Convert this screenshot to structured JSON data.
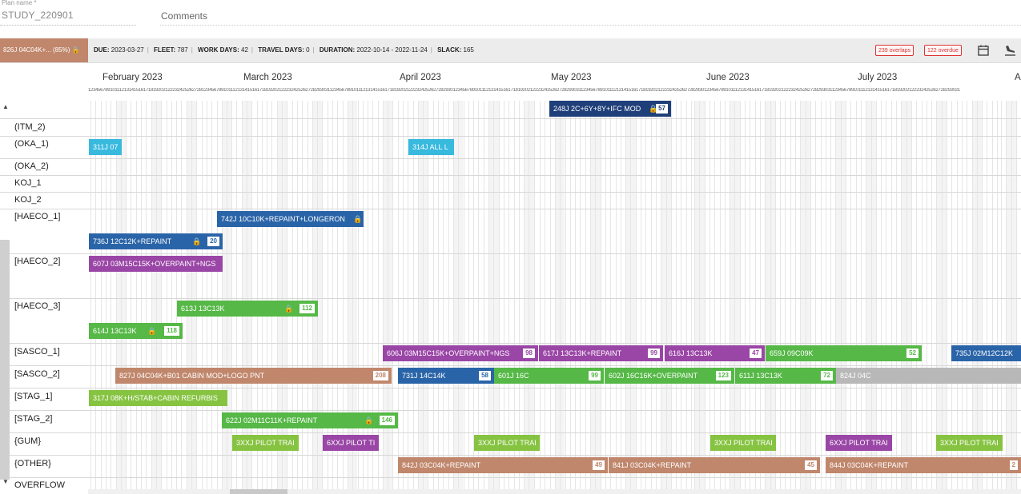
{
  "plan": {
    "label": "Plan name *",
    "value": "STUDY_220901",
    "comments_label": "Comments"
  },
  "infobar": {
    "chip": "826J 04C04K+... (85%)",
    "due_label": "DUE:",
    "due": "2023-03-27",
    "fleet_label": "FLEET:",
    "fleet": "787",
    "workdays_label": "WORK DAYS:",
    "workdays": "42",
    "travel_label": "TRAVEL DAYS:",
    "travel": "0",
    "duration_label": "DURATION:",
    "duration": "2022-10-14 - 2022-11-24",
    "slack_label": "SLACK:",
    "slack": "165",
    "overlaps": "239 overlaps",
    "overdue": "122 overdue"
  },
  "timeline": {
    "months": [
      "February 2023",
      "March 2023",
      "April 2023",
      "May 2023",
      "June 2023",
      "July 2023",
      "A"
    ]
  },
  "rows": [
    {
      "label": ""
    },
    {
      "label": "(ITM_2)"
    },
    {
      "label": "(OKA_1)"
    },
    {
      "label": "(OKA_2)"
    },
    {
      "label": "KOJ_1"
    },
    {
      "label": "KOJ_2"
    },
    {
      "label": "[HAECO_1]"
    },
    {
      "label": "[HAECO_2]"
    },
    {
      "label": "[HAECO_3]"
    },
    {
      "label": "[SASCO_1]"
    },
    {
      "label": "[SASCO_2]"
    },
    {
      "label": "[STAG_1]"
    },
    {
      "label": "[STAG_2]"
    },
    {
      "label": "{GUM}"
    },
    {
      "label": "{OTHER}"
    },
    {
      "label": "OVERFLOW"
    }
  ],
  "bars": [
    {
      "text": "248J 2C+6Y+8Y+IFC MOD",
      "count": "57",
      "lock": true
    },
    {
      "text": "311J 07",
      "count": ""
    },
    {
      "text": "314J ALL L",
      "count": ""
    },
    {
      "text": "742J 10C10K+REPAINT+LONGERON",
      "count": "",
      "lock": true
    },
    {
      "text": "736J 12C12K+REPAINT",
      "count": "20",
      "lock": true
    },
    {
      "text": "607J 03M15C15K+OVERPAINT+NGS",
      "count": ""
    },
    {
      "text": "613J 13C13K",
      "count": "112",
      "lock": true
    },
    {
      "text": "614J 13C13K",
      "count": "118",
      "lock": true
    },
    {
      "text": "606J 03M15C15K+OVERPAINT+NGS",
      "count": "98"
    },
    {
      "text": "617J 13C13K+REPAINT",
      "count": "99"
    },
    {
      "text": "616J 13C13K",
      "count": "47"
    },
    {
      "text": "659J 09C09K",
      "count": "52"
    },
    {
      "text": "735J 02M12C12K",
      "count": ""
    },
    {
      "text": "827J 04C04K+B01 CABIN MOD+LOGO PNT",
      "count": "208"
    },
    {
      "text": "731J 14C14K",
      "count": "58"
    },
    {
      "text": "601J 16C",
      "count": "99"
    },
    {
      "text": "602J 16C16K+OVERPAINT",
      "count": "123"
    },
    {
      "text": "611J 13C13K",
      "count": "72"
    },
    {
      "text": "824J 04C",
      "count": ""
    },
    {
      "text": "317J 08K+H/STAB+CABIN REFURBIS",
      "count": ""
    },
    {
      "text": "622J 02M11C11K+REPAINT",
      "count": "146",
      "lock": true
    },
    {
      "text": "3XXJ PILOT TRAI",
      "count": ""
    },
    {
      "text": "6XXJ PILOT TI",
      "count": ""
    },
    {
      "text": "3XXJ PILOT TRAI",
      "count": ""
    },
    {
      "text": "3XXJ PILOT TRAI",
      "count": ""
    },
    {
      "text": "6XXJ PILOT TRAI",
      "count": ""
    },
    {
      "text": "3XXJ PILOT TRAI",
      "count": ""
    },
    {
      "text": "842J 03C04K+REPAINT",
      "count": "49"
    },
    {
      "text": "841J 03C04K+REPAINT",
      "count": "45"
    },
    {
      "text": "844J 03C04K+REPAINT",
      "count": "2"
    }
  ]
}
